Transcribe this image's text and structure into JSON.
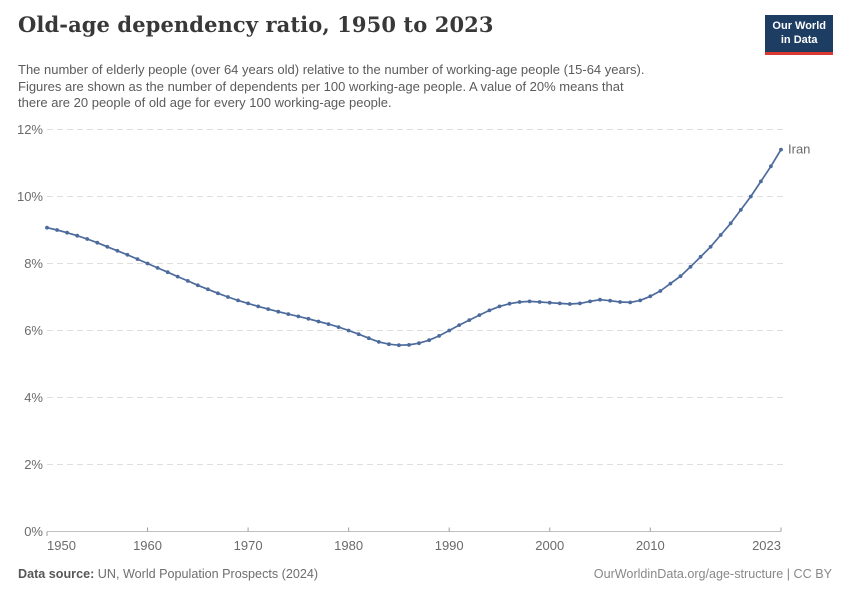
{
  "header": {
    "title": "Old-age dependency ratio, 1950 to 2023",
    "subtitle_lines": [
      "The number of elderly people (over 64 years old) relative to the number of working-age people (15-64 years).",
      "Figures are shown as the number of dependents per 100 working-age people. A value of 20% means that",
      "there are 20 people of old age for every 100 working-age people."
    ],
    "logo": {
      "line1": "Our World",
      "line2": "in Data"
    }
  },
  "chart_data": {
    "type": "line",
    "title": "Old-age dependency ratio, 1950 to 2023",
    "xlabel": "",
    "ylabel": "",
    "xlim": [
      1950,
      2023
    ],
    "ylim": [
      0,
      12
    ],
    "x_ticks": [
      1950,
      1960,
      1970,
      1980,
      1990,
      2000,
      2010,
      2023
    ],
    "y_ticks": [
      0,
      2,
      4,
      6,
      8,
      10,
      12
    ],
    "y_tick_suffix": "%",
    "grid": "horizontal-dashed",
    "legend_position": "end-of-line-label",
    "x": [
      1950,
      1951,
      1952,
      1953,
      1954,
      1955,
      1956,
      1957,
      1958,
      1959,
      1960,
      1961,
      1962,
      1963,
      1964,
      1965,
      1966,
      1967,
      1968,
      1969,
      1970,
      1971,
      1972,
      1973,
      1974,
      1975,
      1976,
      1977,
      1978,
      1979,
      1980,
      1981,
      1982,
      1983,
      1984,
      1985,
      1986,
      1987,
      1988,
      1989,
      1990,
      1991,
      1992,
      1993,
      1994,
      1995,
      1996,
      1997,
      1998,
      1999,
      2000,
      2001,
      2002,
      2003,
      2004,
      2005,
      2006,
      2007,
      2008,
      2009,
      2010,
      2011,
      2012,
      2013,
      2014,
      2015,
      2016,
      2017,
      2018,
      2019,
      2020,
      2021,
      2022,
      2023
    ],
    "series": [
      {
        "name": "Iran",
        "color": "#4c6a9c",
        "values": [
          9.07,
          9.0,
          8.92,
          8.83,
          8.73,
          8.62,
          8.5,
          8.38,
          8.26,
          8.13,
          8.0,
          7.87,
          7.74,
          7.61,
          7.48,
          7.35,
          7.23,
          7.11,
          7.0,
          6.9,
          6.81,
          6.72,
          6.64,
          6.56,
          6.49,
          6.42,
          6.35,
          6.27,
          6.19,
          6.1,
          6.0,
          5.89,
          5.77,
          5.66,
          5.59,
          5.56,
          5.57,
          5.62,
          5.71,
          5.84,
          6.0,
          6.16,
          6.31,
          6.46,
          6.6,
          6.72,
          6.8,
          6.85,
          6.87,
          6.85,
          6.83,
          6.81,
          6.79,
          6.81,
          6.87,
          6.92,
          6.89,
          6.85,
          6.84,
          6.9,
          7.02,
          7.18,
          7.4,
          7.62,
          7.9,
          8.2,
          8.5,
          8.85,
          9.2,
          9.6,
          10.0,
          10.45,
          10.9,
          11.4
        ]
      }
    ],
    "colors": {
      "line": "#4c6a9c",
      "gridline": "#dedede",
      "axis_line": "#c0c0c0",
      "tick": "#9e9e9e",
      "tick_label": "#6b6b6b"
    }
  },
  "footer": {
    "datasource_label": "Data source:",
    "datasource_value": "UN, World Population Prospects (2024)",
    "link": "OurWorldinData.org/age-structure | CC BY"
  }
}
